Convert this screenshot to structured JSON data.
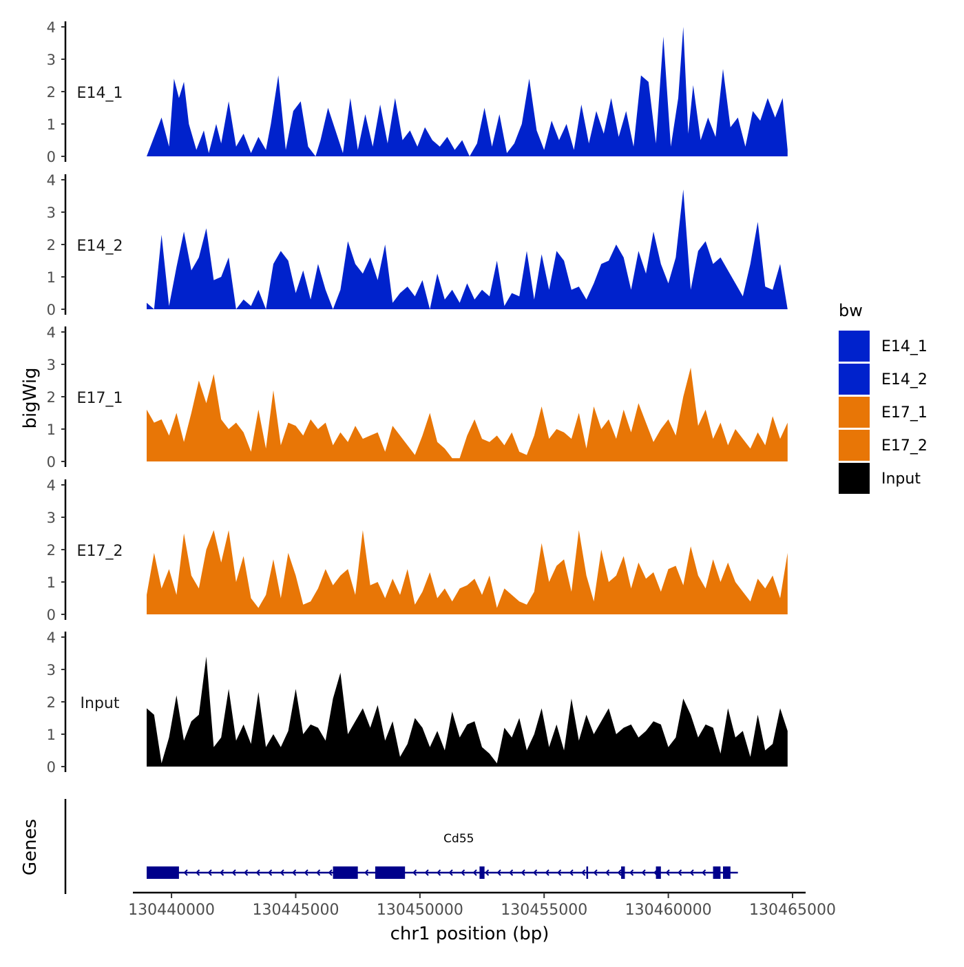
{
  "chart_data": {
    "type": "area",
    "title": "",
    "xlabel": "chr1 position (bp)",
    "ylabel": "bigWig",
    "genes_label": "Genes",
    "x_range": [
      130439000,
      130465000
    ],
    "x_ticks": [
      130440000,
      130445000,
      130450000,
      130455000,
      130460000,
      130465000
    ],
    "x_tick_labels": [
      "130440000",
      "130445000",
      "130450000",
      "130455000",
      "130460000",
      "130465000"
    ],
    "ylim": [
      0,
      4
    ],
    "y_ticks": [
      0,
      1,
      2,
      3,
      4
    ],
    "y_tick_labels": [
      "0",
      "1",
      "2",
      "3",
      "4"
    ],
    "legend": {
      "title": "bw",
      "position": "right",
      "entries": [
        {
          "label": "E14_1",
          "color": "#0022CC"
        },
        {
          "label": "E14_2",
          "color": "#0022CC"
        },
        {
          "label": "E17_1",
          "color": "#E87606"
        },
        {
          "label": "E17_2",
          "color": "#E87606"
        },
        {
          "label": "Input",
          "color": "#000000"
        }
      ]
    },
    "series": [
      {
        "name": "E14_1",
        "color": "#0022CC",
        "x": [
          130439000,
          130439300,
          130439600,
          130439900,
          130440100,
          130440300,
          130440500,
          130440700,
          130441000,
          130441300,
          130441500,
          130441800,
          130442000,
          130442300,
          130442600,
          130442900,
          130443200,
          130443500,
          130443800,
          130444000,
          130444300,
          130444600,
          130444900,
          130445200,
          130445500,
          130445800,
          130446000,
          130446300,
          130446600,
          130446900,
          130447200,
          130447500,
          130447800,
          130448100,
          130448400,
          130448700,
          130449000,
          130449300,
          130449600,
          130449900,
          130450200,
          130450500,
          130450800,
          130451100,
          130451400,
          130451700,
          130452000,
          130452300,
          130452600,
          130452900,
          130453200,
          130453500,
          130453800,
          130454100,
          130454400,
          130454700,
          130455000,
          130455300,
          130455600,
          130455900,
          130456200,
          130456500,
          130456800,
          130457100,
          130457400,
          130457700,
          130458000,
          130458300,
          130458600,
          130458900,
          130459200,
          130459500,
          130459800,
          130460100,
          130460400,
          130460600,
          130460800,
          130461000,
          130461300,
          130461600,
          130461900,
          130462200,
          130462500,
          130462800,
          130463100,
          130463400,
          130463700,
          130464000,
          130464300,
          130464600,
          130464800
        ],
        "values": [
          0,
          0.6,
          1.2,
          0.3,
          2.4,
          1.8,
          2.3,
          1.0,
          0.2,
          0.8,
          0.1,
          1.0,
          0.4,
          1.7,
          0.3,
          0.7,
          0.1,
          0.6,
          0.2,
          1.0,
          2.5,
          0.2,
          1.4,
          1.7,
          0.3,
          0,
          0.5,
          1.5,
          0.8,
          0.1,
          1.8,
          0.2,
          1.3,
          0.3,
          1.6,
          0.4,
          1.8,
          0.5,
          0.8,
          0.3,
          0.9,
          0.5,
          0.3,
          0.6,
          0.2,
          0.5,
          0,
          0.4,
          1.5,
          0.3,
          1.3,
          0.1,
          0.4,
          1.0,
          2.4,
          0.8,
          0.2,
          1.1,
          0.5,
          1.0,
          0.2,
          1.6,
          0.4,
          1.4,
          0.7,
          1.8,
          0.6,
          1.4,
          0.3,
          2.5,
          2.3,
          0.4,
          3.7,
          0.3,
          1.8,
          4.0,
          0.7,
          2.2,
          0.5,
          1.2,
          0.6,
          2.7,
          0.9,
          1.2,
          0.3,
          1.4,
          1.1,
          1.8,
          1.2,
          1.8,
          0.2
        ]
      },
      {
        "name": "E14_2",
        "color": "#0022CC",
        "x": [
          130439000,
          130439300,
          130439600,
          130439900,
          130440200,
          130440500,
          130440800,
          130441100,
          130441400,
          130441700,
          130442000,
          130442300,
          130442600,
          130442900,
          130443200,
          130443500,
          130443800,
          130444100,
          130444400,
          130444700,
          130445000,
          130445300,
          130445600,
          130445900,
          130446200,
          130446500,
          130446800,
          130447100,
          130447400,
          130447700,
          130448000,
          130448300,
          130448600,
          130448900,
          130449200,
          130449500,
          130449800,
          130450100,
          130450400,
          130450700,
          130451000,
          130451300,
          130451600,
          130451900,
          130452200,
          130452500,
          130452800,
          130453100,
          130453400,
          130453700,
          130454000,
          130454300,
          130454600,
          130454900,
          130455200,
          130455500,
          130455800,
          130456100,
          130456400,
          130456700,
          130457000,
          130457300,
          130457600,
          130457900,
          130458200,
          130458500,
          130458800,
          130459100,
          130459400,
          130459700,
          130460000,
          130460300,
          130460600,
          130460900,
          130461200,
          130461500,
          130461800,
          130462100,
          130462400,
          130462700,
          130463000,
          130463300,
          130463600,
          130463900,
          130464200,
          130464500,
          130464800
        ],
        "values": [
          0.2,
          0,
          2.3,
          0.1,
          1.3,
          2.4,
          1.2,
          1.6,
          2.5,
          0.9,
          1.0,
          1.6,
          0,
          0.3,
          0.1,
          0.6,
          0,
          1.4,
          1.8,
          1.5,
          0.5,
          1.2,
          0.3,
          1.4,
          0.6,
          0,
          0.6,
          2.1,
          1.4,
          1.1,
          1.6,
          0.9,
          2.0,
          0.2,
          0.5,
          0.7,
          0.4,
          0.9,
          0,
          1.1,
          0.3,
          0.6,
          0.2,
          0.8,
          0.3,
          0.6,
          0.4,
          1.5,
          0.1,
          0.5,
          0.4,
          1.8,
          0.3,
          1.7,
          0.6,
          1.8,
          1.5,
          0.6,
          0.7,
          0.3,
          0.8,
          1.4,
          1.5,
          2.0,
          1.6,
          0.6,
          1.8,
          1.1,
          2.4,
          1.4,
          0.8,
          1.6,
          3.7,
          0.6,
          1.8,
          2.1,
          1.4,
          1.6,
          1.2,
          0.8,
          0.4,
          1.4,
          2.7,
          0.7,
          0.6,
          1.4,
          0
        ]
      },
      {
        "name": "E17_1",
        "color": "#E87606",
        "x": [
          130439000,
          130439300,
          130439600,
          130439900,
          130440200,
          130440500,
          130440800,
          130441100,
          130441400,
          130441700,
          130442000,
          130442300,
          130442600,
          130442900,
          130443200,
          130443500,
          130443800,
          130444100,
          130444400,
          130444700,
          130445000,
          130445300,
          130445600,
          130445900,
          130446200,
          130446500,
          130446800,
          130447100,
          130447400,
          130447700,
          130448000,
          130448300,
          130448600,
          130448900,
          130449200,
          130449500,
          130449800,
          130450100,
          130450400,
          130450700,
          130451000,
          130451300,
          130451600,
          130451900,
          130452200,
          130452500,
          130452800,
          130453100,
          130453400,
          130453700,
          130454000,
          130454300,
          130454600,
          130454900,
          130455200,
          130455500,
          130455800,
          130456100,
          130456400,
          130456700,
          130457000,
          130457300,
          130457600,
          130457900,
          130458200,
          130458500,
          130458800,
          130459100,
          130459400,
          130459700,
          130460000,
          130460300,
          130460600,
          130460900,
          130461200,
          130461500,
          130461800,
          130462100,
          130462400,
          130462700,
          130463000,
          130463300,
          130463600,
          130463900,
          130464200,
          130464500,
          130464800
        ],
        "values": [
          1.6,
          1.2,
          1.3,
          0.8,
          1.5,
          0.6,
          1.5,
          2.5,
          1.8,
          2.7,
          1.3,
          1.0,
          1.2,
          0.9,
          0.3,
          1.6,
          0.4,
          2.2,
          0.5,
          1.2,
          1.1,
          0.8,
          1.3,
          1.0,
          1.2,
          0.5,
          0.9,
          0.6,
          1.1,
          0.7,
          0.8,
          0.9,
          0.3,
          1.1,
          0.8,
          0.5,
          0.2,
          0.8,
          1.5,
          0.6,
          0.4,
          0.1,
          0.1,
          0.8,
          1.3,
          0.7,
          0.6,
          0.8,
          0.5,
          0.9,
          0.3,
          0.2,
          0.8,
          1.7,
          0.7,
          1.0,
          0.9,
          0.7,
          1.5,
          0.4,
          1.7,
          1.0,
          1.3,
          0.7,
          1.6,
          0.9,
          1.8,
          1.2,
          0.6,
          1.0,
          1.3,
          0.8,
          2.0,
          2.9,
          1.1,
          1.6,
          0.7,
          1.2,
          0.5,
          1.0,
          0.7,
          0.4,
          0.9,
          0.5,
          1.4,
          0.7,
          1.2
        ]
      },
      {
        "name": "E17_2",
        "color": "#E87606",
        "x": [
          130439000,
          130439300,
          130439600,
          130439900,
          130440200,
          130440500,
          130440800,
          130441100,
          130441400,
          130441700,
          130442000,
          130442300,
          130442600,
          130442900,
          130443200,
          130443500,
          130443800,
          130444100,
          130444400,
          130444700,
          130445000,
          130445300,
          130445600,
          130445900,
          130446200,
          130446500,
          130446800,
          130447100,
          130447400,
          130447700,
          130448000,
          130448300,
          130448600,
          130448900,
          130449200,
          130449500,
          130449800,
          130450100,
          130450400,
          130450700,
          130451000,
          130451300,
          130451600,
          130451900,
          130452200,
          130452500,
          130452800,
          130453100,
          130453400,
          130453700,
          130454000,
          130454300,
          130454600,
          130454900,
          130455200,
          130455500,
          130455800,
          130456100,
          130456400,
          130456700,
          130457000,
          130457300,
          130457600,
          130457900,
          130458200,
          130458500,
          130458800,
          130459100,
          130459400,
          130459700,
          130460000,
          130460300,
          130460600,
          130460900,
          130461200,
          130461500,
          130461800,
          130462100,
          130462400,
          130462700,
          130463000,
          130463300,
          130463600,
          130463900,
          130464200,
          130464500,
          130464800
        ],
        "values": [
          0.6,
          1.9,
          0.8,
          1.4,
          0.6,
          2.5,
          1.2,
          0.8,
          2.0,
          2.6,
          1.6,
          2.6,
          1.0,
          1.8,
          0.5,
          0.2,
          0.6,
          1.7,
          0.5,
          1.9,
          1.2,
          0.3,
          0.4,
          0.8,
          1.4,
          0.9,
          1.2,
          1.4,
          0.6,
          2.6,
          0.9,
          1.0,
          0.5,
          1.1,
          0.6,
          1.4,
          0.3,
          0.7,
          1.3,
          0.5,
          0.8,
          0.4,
          0.8,
          0.9,
          1.1,
          0.6,
          1.2,
          0.2,
          0.8,
          0.6,
          0.4,
          0.3,
          0.7,
          2.2,
          1.0,
          1.5,
          1.7,
          0.7,
          2.6,
          1.2,
          0.4,
          2.0,
          1.0,
          1.2,
          1.8,
          0.8,
          1.6,
          1.1,
          1.3,
          0.7,
          1.4,
          1.5,
          0.9,
          2.1,
          1.2,
          0.8,
          1.7,
          1.0,
          1.6,
          1.0,
          0.7,
          0.4,
          1.1,
          0.8,
          1.2,
          0.5,
          1.9
        ]
      },
      {
        "name": "Input",
        "color": "#000000",
        "x": [
          130439000,
          130439300,
          130439600,
          130439900,
          130440200,
          130440500,
          130440800,
          130441100,
          130441400,
          130441700,
          130442000,
          130442300,
          130442600,
          130442900,
          130443200,
          130443500,
          130443800,
          130444100,
          130444400,
          130444700,
          130445000,
          130445300,
          130445600,
          130445900,
          130446200,
          130446500,
          130446800,
          130447100,
          130447400,
          130447700,
          130448000,
          130448300,
          130448600,
          130448900,
          130449200,
          130449500,
          130449800,
          130450100,
          130450400,
          130450700,
          130451000,
          130451300,
          130451600,
          130451900,
          130452200,
          130452500,
          130452800,
          130453100,
          130453400,
          130453700,
          130454000,
          130454300,
          130454600,
          130454900,
          130455200,
          130455500,
          130455800,
          130456100,
          130456400,
          130456700,
          130457000,
          130457300,
          130457600,
          130457900,
          130458200,
          130458500,
          130458800,
          130459100,
          130459400,
          130459700,
          130460000,
          130460300,
          130460600,
          130460900,
          130461200,
          130461500,
          130461800,
          130462100,
          130462400,
          130462700,
          130463000,
          130463300,
          130463600,
          130463900,
          130464200,
          130464500,
          130464800
        ],
        "values": [
          1.8,
          1.6,
          0.1,
          0.9,
          2.2,
          0.8,
          1.4,
          1.6,
          3.4,
          0.6,
          0.9,
          2.4,
          0.8,
          1.3,
          0.7,
          2.3,
          0.6,
          1.0,
          0.6,
          1.1,
          2.4,
          1.0,
          1.3,
          1.2,
          0.8,
          2.1,
          2.9,
          1.0,
          1.4,
          1.8,
          1.2,
          1.9,
          0.8,
          1.4,
          0.3,
          0.7,
          1.5,
          1.2,
          0.6,
          1.1,
          0.5,
          1.7,
          0.9,
          1.3,
          1.4,
          0.6,
          0.4,
          0.1,
          1.2,
          0.9,
          1.5,
          0.5,
          1.0,
          1.8,
          0.6,
          1.3,
          0.5,
          2.1,
          0.8,
          1.6,
          1.0,
          1.4,
          1.8,
          1.0,
          1.2,
          1.3,
          0.9,
          1.1,
          1.4,
          1.3,
          0.6,
          0.9,
          2.1,
          1.6,
          0.9,
          1.3,
          1.2,
          0.4,
          1.8,
          0.9,
          1.1,
          0.3,
          1.6,
          0.5,
          0.7,
          1.8,
          1.1
        ]
      }
    ],
    "genes": [
      {
        "name": "Cd55",
        "strand": "-",
        "start": 130439000,
        "end": 130462800,
        "exons": [
          [
            130439000,
            130440300
          ],
          [
            130446500,
            130447500
          ],
          [
            130448200,
            130449400
          ],
          [
            130452400,
            130452600
          ],
          [
            130456700,
            130456770
          ],
          [
            130458100,
            130458250
          ],
          [
            130459500,
            130459700
          ],
          [
            130461800,
            130462100
          ],
          [
            130462200,
            130462500
          ]
        ]
      }
    ]
  }
}
